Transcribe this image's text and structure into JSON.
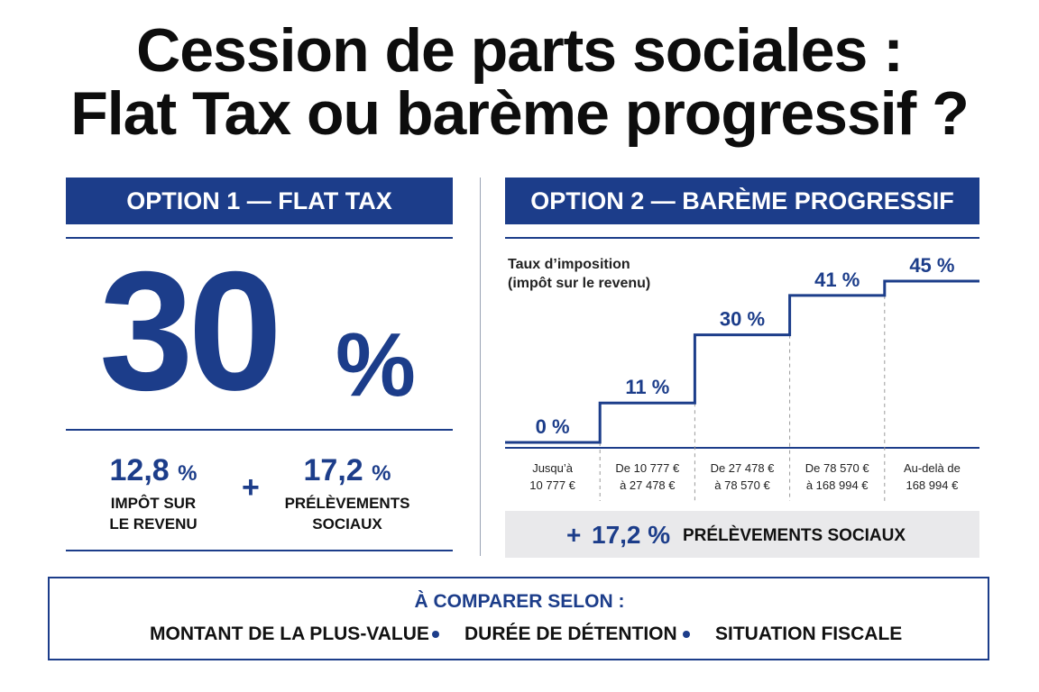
{
  "title": {
    "line1": "Cession de parts sociales :",
    "line2": "Flat Tax ou barème progressif ?"
  },
  "option1": {
    "banner": "OPTION 1 — FLAT TAX",
    "big_value": "30",
    "big_unit": "%",
    "components": [
      {
        "value": "12,8",
        "unit": "%",
        "label_line1": "IMPÔT SUR",
        "label_line2": "LE REVENU"
      },
      {
        "value": "17,2",
        "unit": "%",
        "label_line1": "PRÉLÈVEMENTS",
        "label_line2": "SOCIAUX"
      }
    ],
    "plus": "+"
  },
  "option2": {
    "banner": "OPTION 2 — BARÈME PROGRESSIF",
    "axis_title_line1": "Taux d’imposition",
    "axis_title_line2": "(impôt sur le revenu)",
    "social": {
      "plus": "+",
      "value": "17,2 %",
      "label": "PRÉLÈVEMENTS SOCIAUX"
    }
  },
  "compare": {
    "title": "À COMPARER SELON :",
    "criteria": [
      "MONTANT DE LA PLUS-VALUE",
      "DURÉE DE DÉTENTION",
      "SITUATION FISCALE"
    ]
  },
  "colors": {
    "accent": "#1c3d8a",
    "panel_gray": "#e9e9eb",
    "text": "#111111"
  },
  "chart_data": {
    "type": "line",
    "title": "",
    "ylabel": "Taux d’imposition (impôt sur le revenu)",
    "categories": [
      [
        "Jusqu’à",
        "10 777 €"
      ],
      [
        "De 10 777 €",
        "à 27 478 €"
      ],
      [
        "De 27 478 €",
        "à 78 570 €"
      ],
      [
        "De 78 570 €",
        "à 168 994 €"
      ],
      [
        "Au-delà de",
        "168 994 €"
      ]
    ],
    "values": [
      0,
      11,
      30,
      41,
      45
    ],
    "value_labels": [
      "0 %",
      "11 %",
      "30 %",
      "41 %",
      "45 %"
    ],
    "ylim": [
      0,
      45
    ],
    "grid": false
  }
}
